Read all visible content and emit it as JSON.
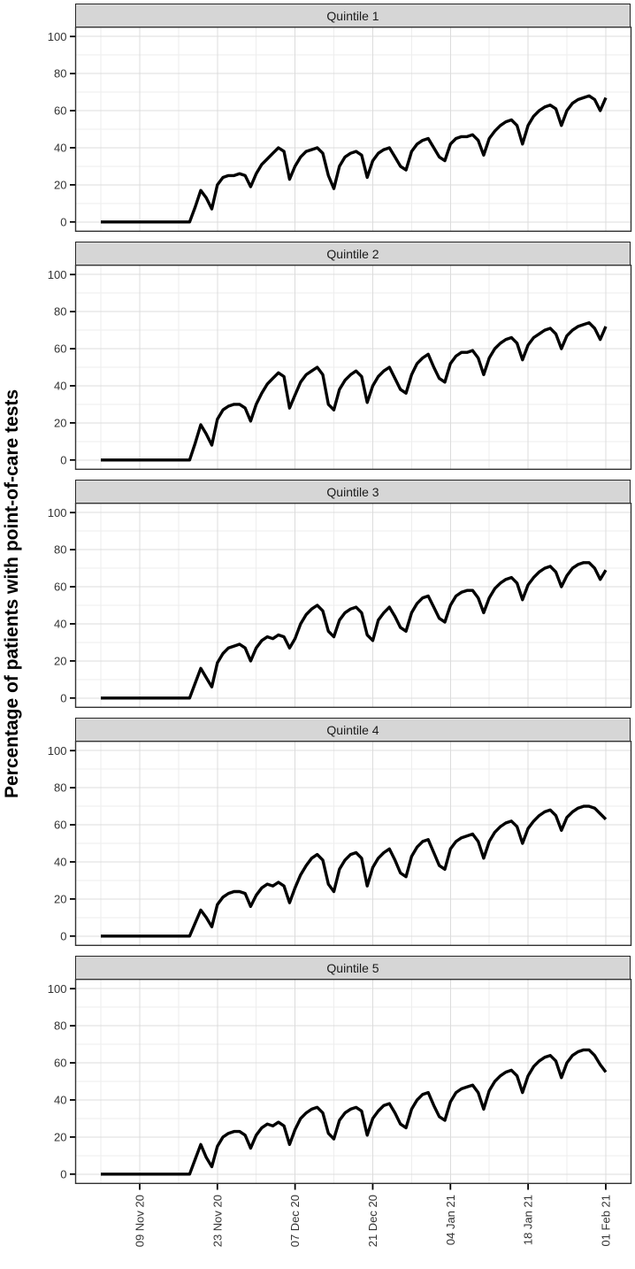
{
  "chart_data": {
    "type": "line",
    "title": "",
    "ylabel": "Percentage of patients with point-of-care tests",
    "xlabel": "",
    "ylim": [
      0,
      100
    ],
    "y_ticks": [
      0,
      20,
      40,
      60,
      80,
      100
    ],
    "y_minor": [
      10,
      30,
      50,
      70,
      90
    ],
    "x_ticks": [
      {
        "label": "09 Nov 20",
        "day": 7
      },
      {
        "label": "23 Nov 20",
        "day": 21
      },
      {
        "label": "07 Dec 20",
        "day": 35
      },
      {
        "label": "21 Dec 20",
        "day": 49
      },
      {
        "label": "04 Jan 21",
        "day": 63
      },
      {
        "label": "18 Jan 21",
        "day": 77
      },
      {
        "label": "01 Feb 21",
        "day": 91
      }
    ],
    "x_minor_days": [
      0,
      14,
      28,
      42,
      56,
      70,
      84
    ],
    "days_total": 92,
    "grid": "major+minor",
    "legend": "none",
    "line_color": "#000000",
    "facets": [
      {
        "label": "Quintile 1",
        "values": [
          0,
          0,
          0,
          0,
          0,
          0,
          0,
          0,
          0,
          0,
          0,
          0,
          0,
          0,
          0,
          0,
          0,
          8,
          17,
          13,
          7,
          20,
          24,
          25,
          25,
          26,
          25,
          19,
          26,
          31,
          34,
          37,
          40,
          38,
          23,
          30,
          35,
          38,
          39,
          40,
          37,
          25,
          18,
          30,
          35,
          37,
          38,
          36,
          24,
          33,
          37,
          39,
          40,
          35,
          30,
          28,
          38,
          42,
          44,
          45,
          40,
          35,
          33,
          42,
          45,
          46,
          46,
          47,
          44,
          36,
          45,
          49,
          52,
          54,
          55,
          52,
          42,
          52,
          57,
          60,
          62,
          63,
          61,
          52,
          60,
          64,
          66,
          67,
          68,
          66,
          60,
          67
        ]
      },
      {
        "label": "Quintile 2",
        "values": [
          0,
          0,
          0,
          0,
          0,
          0,
          0,
          0,
          0,
          0,
          0,
          0,
          0,
          0,
          0,
          0,
          0,
          9,
          19,
          14,
          8,
          22,
          27,
          29,
          30,
          30,
          28,
          21,
          30,
          36,
          41,
          44,
          47,
          45,
          28,
          35,
          42,
          46,
          48,
          50,
          46,
          30,
          27,
          38,
          43,
          46,
          48,
          45,
          31,
          40,
          45,
          48,
          50,
          44,
          38,
          36,
          46,
          52,
          55,
          57,
          50,
          44,
          42,
          52,
          56,
          58,
          58,
          59,
          55,
          46,
          55,
          60,
          63,
          65,
          66,
          63,
          54,
          62,
          66,
          68,
          70,
          71,
          68,
          60,
          67,
          70,
          72,
          73,
          74,
          71,
          65,
          72
        ]
      },
      {
        "label": "Quintile 3",
        "values": [
          0,
          0,
          0,
          0,
          0,
          0,
          0,
          0,
          0,
          0,
          0,
          0,
          0,
          0,
          0,
          0,
          0,
          8,
          16,
          11,
          6,
          19,
          24,
          27,
          28,
          29,
          27,
          20,
          27,
          31,
          33,
          32,
          34,
          33,
          27,
          32,
          40,
          45,
          48,
          50,
          47,
          36,
          33,
          42,
          46,
          48,
          49,
          46,
          34,
          31,
          42,
          46,
          49,
          44,
          38,
          36,
          46,
          51,
          54,
          55,
          49,
          43,
          41,
          50,
          55,
          57,
          58,
          58,
          54,
          46,
          54,
          59,
          62,
          64,
          65,
          62,
          53,
          61,
          65,
          68,
          70,
          71,
          68,
          60,
          66,
          70,
          72,
          73,
          73,
          70,
          64,
          69
        ]
      },
      {
        "label": "Quintile 4",
        "values": [
          0,
          0,
          0,
          0,
          0,
          0,
          0,
          0,
          0,
          0,
          0,
          0,
          0,
          0,
          0,
          0,
          0,
          7,
          14,
          10,
          5,
          17,
          21,
          23,
          24,
          24,
          23,
          16,
          22,
          26,
          28,
          27,
          29,
          27,
          18,
          26,
          33,
          38,
          42,
          44,
          41,
          28,
          24,
          36,
          41,
          44,
          45,
          42,
          27,
          37,
          42,
          45,
          47,
          41,
          34,
          32,
          43,
          48,
          51,
          52,
          45,
          38,
          36,
          47,
          51,
          53,
          54,
          55,
          51,
          42,
          51,
          56,
          59,
          61,
          62,
          59,
          50,
          58,
          62,
          65,
          67,
          68,
          65,
          57,
          64,
          67,
          69,
          70,
          70,
          69,
          66,
          63
        ]
      },
      {
        "label": "Quintile 5",
        "values": [
          0,
          0,
          0,
          0,
          0,
          0,
          0,
          0,
          0,
          0,
          0,
          0,
          0,
          0,
          0,
          0,
          0,
          8,
          16,
          9,
          4,
          15,
          20,
          22,
          23,
          23,
          21,
          14,
          21,
          25,
          27,
          26,
          28,
          26,
          16,
          24,
          30,
          33,
          35,
          36,
          33,
          22,
          19,
          29,
          33,
          35,
          36,
          34,
          21,
          30,
          34,
          37,
          38,
          33,
          27,
          25,
          35,
          40,
          43,
          44,
          37,
          31,
          29,
          39,
          44,
          46,
          47,
          48,
          44,
          35,
          45,
          50,
          53,
          55,
          56,
          53,
          44,
          53,
          58,
          61,
          63,
          64,
          61,
          52,
          60,
          64,
          66,
          67,
          67,
          64,
          59,
          55
        ]
      }
    ]
  },
  "theme": {
    "background": "#ffffff",
    "strip_fill": "#d6d6d6",
    "strip_border": "#262626",
    "strip_text_color": "#1a1a1a",
    "panel_border": "#333333",
    "grid_major": "#dcdcdc",
    "grid_minor": "#eeeeee",
    "tick_color": "#000000",
    "tick_label_color": "#333333",
    "line_color": "#000000"
  }
}
